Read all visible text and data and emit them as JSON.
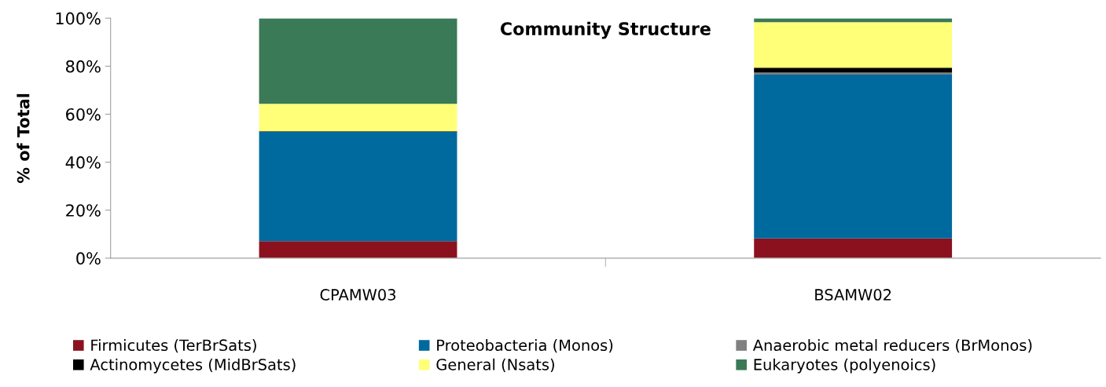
{
  "chart_data": {
    "type": "bar",
    "title": "Community Structure",
    "ylabel": "% of Total",
    "stacked": true,
    "categories": [
      "CPAMW03",
      "BSAMW02"
    ],
    "series": [
      {
        "name": "Firmicutes (TerBrSats)",
        "color": "#8b111e",
        "values": [
          7.1,
          8.2
        ]
      },
      {
        "name": "Proteobacteria (Monos)",
        "color": "#00699e",
        "values": [
          45.5,
          68.3
        ]
      },
      {
        "name": "Anaerobic metal reducers (BrMonos)",
        "color": "#808080",
        "values": [
          null,
          0.8
        ]
      },
      {
        "name": "Actinomycetes (MidBrSats)",
        "color": "#000000",
        "values": [
          0.3,
          2.1
        ]
      },
      {
        "name": "General (Nsats)",
        "color": "#ffff78",
        "values": [
          11.4,
          18.9
        ]
      },
      {
        "name": "Eukaryotes (polyenoics)",
        "color": "#3a7a56",
        "values": [
          35.6,
          1.6
        ]
      }
    ],
    "ylim": [
      0,
      100
    ],
    "yticks": [
      {
        "value": 0,
        "label": "0%"
      },
      {
        "value": 20,
        "label": "20%"
      },
      {
        "value": 40,
        "label": "40%"
      },
      {
        "value": 60,
        "label": "60%"
      },
      {
        "value": 80,
        "label": "80%"
      },
      {
        "value": 100,
        "label": "100%"
      }
    ],
    "grid": false,
    "legend": "bottom"
  }
}
